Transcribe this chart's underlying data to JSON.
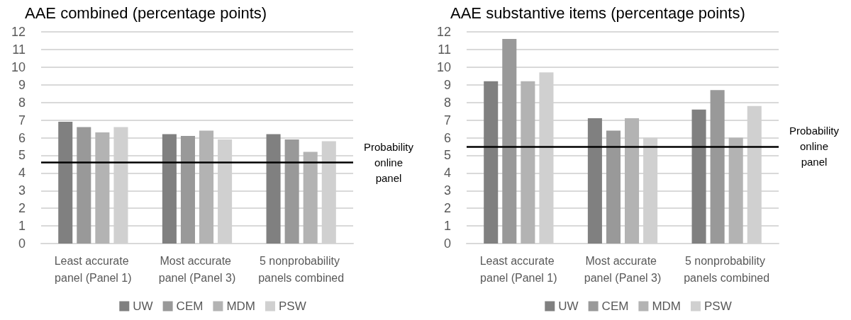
{
  "chart_data": [
    {
      "type": "bar",
      "title": "AAE combined (percentage points)",
      "categories": [
        "Least accurate panel (Panel 1)",
        "Most accurate panel (Panel 3)",
        "5 nonprobability panels combined"
      ],
      "series": [
        {
          "name": "UW",
          "color": "#808080",
          "values": [
            6.9,
            6.2,
            6.2
          ]
        },
        {
          "name": "CEM",
          "color": "#999999",
          "values": [
            6.6,
            6.1,
            5.9
          ]
        },
        {
          "name": "MDM",
          "color": "#b3b3b3",
          "values": [
            6.3,
            6.4,
            5.2
          ]
        },
        {
          "name": "PSW",
          "color": "#d0d0d0",
          "values": [
            6.6,
            5.9,
            5.8
          ]
        }
      ],
      "ylim": [
        0,
        12
      ],
      "yticks": [
        0,
        1,
        2,
        3,
        4,
        5,
        6,
        7,
        8,
        9,
        10,
        11,
        12
      ],
      "grid": "y",
      "legend": "bottom",
      "ref_lines": [
        {
          "axis": "y",
          "value": 4.6,
          "label": "Probability online panel",
          "color": "#000000"
        }
      ]
    },
    {
      "type": "bar",
      "title": "AAE substantive items (percentage points)",
      "categories": [
        "Least accurate panel (Panel 1)",
        "Most accurate panel (Panel 3)",
        "5 nonprobability panels combined"
      ],
      "series": [
        {
          "name": "UW",
          "color": "#808080",
          "values": [
            9.2,
            7.1,
            7.6
          ]
        },
        {
          "name": "CEM",
          "color": "#999999",
          "values": [
            11.6,
            6.4,
            8.7
          ]
        },
        {
          "name": "MDM",
          "color": "#b3b3b3",
          "values": [
            9.2,
            7.1,
            6.0
          ]
        },
        {
          "name": "PSW",
          "color": "#d0d0d0",
          "values": [
            9.7,
            6.0,
            7.8
          ]
        }
      ],
      "ylim": [
        0,
        12
      ],
      "yticks": [
        0,
        1,
        2,
        3,
        4,
        5,
        6,
        7,
        8,
        9,
        10,
        11,
        12
      ],
      "grid": "y",
      "legend": "bottom",
      "ref_lines": [
        {
          "axis": "y",
          "value": 5.5,
          "label": "Probability online panel",
          "color": "#000000"
        }
      ]
    }
  ]
}
